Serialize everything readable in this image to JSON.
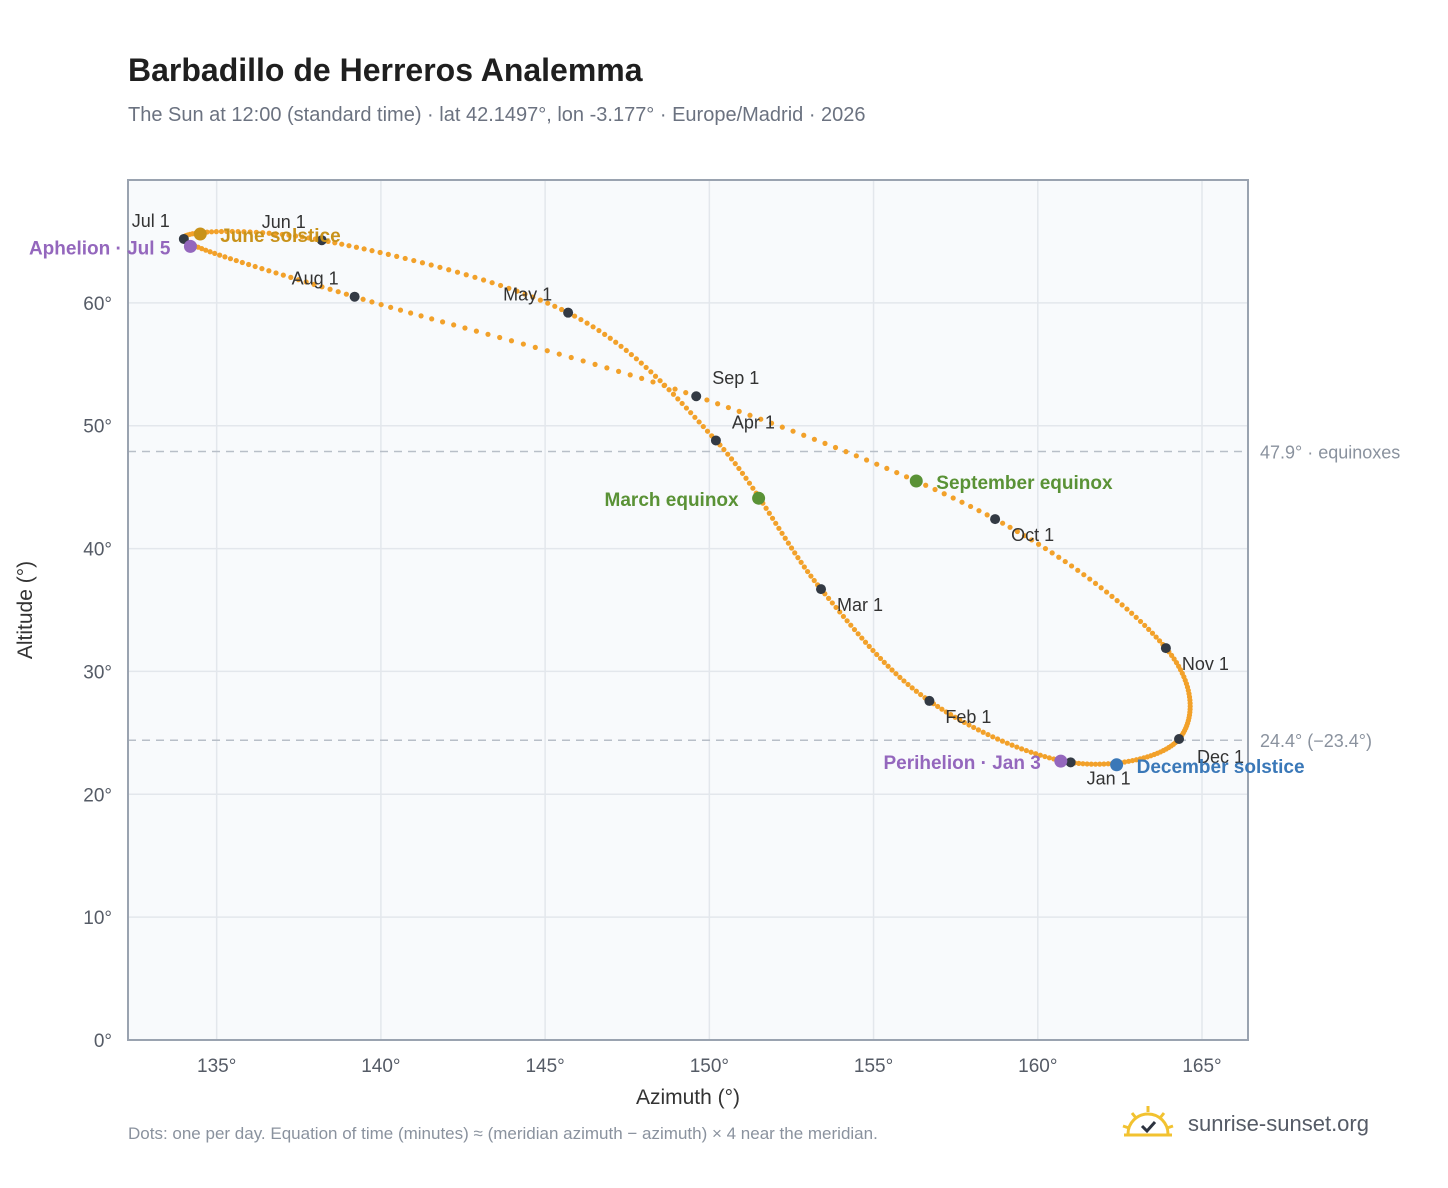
{
  "title": "Barbadillo de Herreros Analemma",
  "subtitle": "The Sun at 12:00 (standard time) · lat 42.1497°, lon -3.177° · Europe/Madrid · 2026",
  "footnote": "Dots: one per day. Equation of time (minutes) ≈ (meridian azimuth − azimuth) × 4 near the meridian.",
  "brand": {
    "text": "sunrise-sunset.org",
    "icon": "sun-logo-icon"
  },
  "colors": {
    "curve": "#f2a12a",
    "month_dot": "#333a44",
    "june_solstice": "#c8921a",
    "december_solstice": "#3a78b8",
    "equinox": "#5a9236",
    "apsis": "#9467bd",
    "plot_bg": "#f8fafc",
    "grid": "#e3e7ec",
    "ref_line": "#b8bfc8"
  },
  "chart_data": {
    "type": "scatter",
    "title": "Barbadillo de Herreros Analemma",
    "xlabel": "Azimuth (°)",
    "ylabel": "Altitude (°)",
    "xlim": [
      132.3,
      166.4
    ],
    "ylim": [
      0,
      70
    ],
    "xticks": [
      "135°",
      "140°",
      "145°",
      "150°",
      "155°",
      "160°",
      "165°"
    ],
    "yticks": [
      "0°",
      "10°",
      "20°",
      "30°",
      "40°",
      "50°",
      "60°"
    ],
    "grid": true,
    "reference_lines": [
      {
        "y": 47.9,
        "label": "47.9° · equinoxes"
      },
      {
        "y": 24.4,
        "label": "24.4° (−23.4°)"
      }
    ],
    "monthly_points": [
      {
        "label": "Jan 1",
        "azimuth": 161.0,
        "altitude": 22.6
      },
      {
        "label": "Feb 1",
        "azimuth": 156.7,
        "altitude": 27.6
      },
      {
        "label": "Mar 1",
        "azimuth": 153.4,
        "altitude": 36.7
      },
      {
        "label": "Apr 1",
        "azimuth": 150.2,
        "altitude": 48.8
      },
      {
        "label": "May 1",
        "azimuth": 145.7,
        "altitude": 59.2
      },
      {
        "label": "Jun 1",
        "azimuth": 138.2,
        "altitude": 65.1
      },
      {
        "label": "Jul 1",
        "azimuth": 134.0,
        "altitude": 65.2
      },
      {
        "label": "Aug 1",
        "azimuth": 139.2,
        "altitude": 60.5
      },
      {
        "label": "Sep 1",
        "azimuth": 149.6,
        "altitude": 52.4
      },
      {
        "label": "Oct 1",
        "azimuth": 158.7,
        "altitude": 42.4
      },
      {
        "label": "Nov 1",
        "azimuth": 163.9,
        "altitude": 31.9
      },
      {
        "label": "Dec 1",
        "azimuth": 164.3,
        "altitude": 24.5
      }
    ],
    "events": [
      {
        "label": "June solstice",
        "azimuth": 134.5,
        "altitude": 65.6,
        "color_key": "june_solstice"
      },
      {
        "label": "December solstice",
        "azimuth": 162.4,
        "altitude": 22.4,
        "color_key": "december_solstice"
      },
      {
        "label": "March equinox",
        "azimuth": 151.5,
        "altitude": 44.1,
        "color_key": "equinox"
      },
      {
        "label": "September equinox",
        "azimuth": 156.3,
        "altitude": 45.5,
        "color_key": "equinox"
      },
      {
        "label": "Aphelion · Jul 5",
        "azimuth": 134.2,
        "altitude": 64.6,
        "color_key": "apsis"
      },
      {
        "label": "Perihelion · Jan 3",
        "azimuth": 160.7,
        "altitude": 22.7,
        "color_key": "apsis"
      }
    ],
    "curve_path_order": [
      "Jan 1",
      "Feb 1",
      "Mar 1",
      "Apr 1",
      "May 1",
      "Jun 1",
      "Jul 1",
      "Aug 1",
      "Sep 1",
      "Oct 1",
      "Nov 1",
      "Dec 1"
    ],
    "daily_dots_note": "one per day"
  }
}
